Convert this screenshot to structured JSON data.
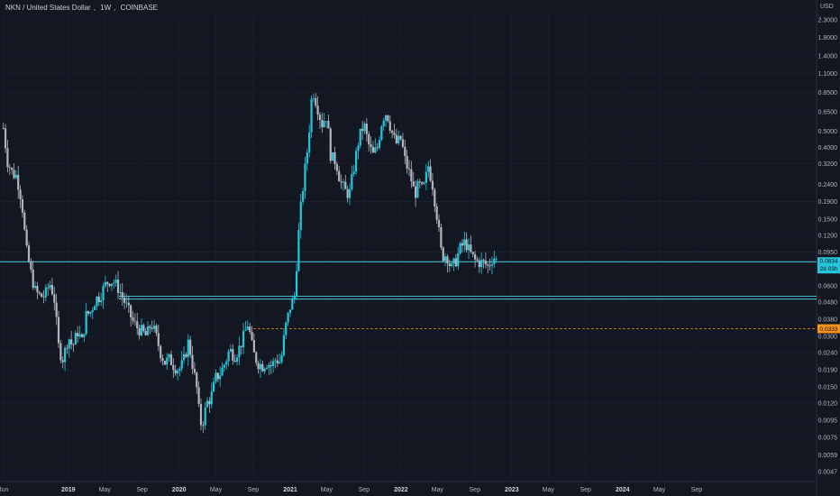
{
  "header": {
    "symbol": "NKN / United States Dollar",
    "interval": "1W",
    "exchange": "COINBASE",
    "currency": "USD"
  },
  "colors": {
    "background": "#131722",
    "up": "#26c6da",
    "down": "#b2b5be",
    "support_line": "#4dd0e1",
    "dashed_level": "#f7931a",
    "grid": "#1e2230",
    "axis_text": "#b2b5be"
  },
  "badges": {
    "current_price": "0.0834",
    "countdown": "2d 03h",
    "level_price": "0.0333"
  },
  "chart_data": {
    "type": "candlestick",
    "scale": "log",
    "ylim": [
      0.0042,
      2.6
    ],
    "xlim": [
      "2018-05-21",
      "2025-10-01"
    ],
    "grid": true,
    "y_tick_labels": [
      "2.3000",
      "1.8000",
      "1.4000",
      "1.1000",
      "0.8500",
      "0.6500",
      "0.5000",
      "0.4000",
      "0.3200",
      "0.2400",
      "0.1900",
      "0.1500",
      "0.1200",
      "0.0950",
      "0.0600",
      "0.0480",
      "0.0380",
      "0.0300",
      "0.0240",
      "0.0190",
      "0.0150",
      "0.0120",
      "0.0095",
      "0.0075",
      "0.0059",
      "0.0047"
    ],
    "x_tick_labels": [
      {
        "date": "2018-06-01",
        "label": "Jun",
        "year": false
      },
      {
        "date": "2019-01-01",
        "label": "2019",
        "year": true
      },
      {
        "date": "2019-05-01",
        "label": "May",
        "year": false
      },
      {
        "date": "2019-09-01",
        "label": "Sep",
        "year": false
      },
      {
        "date": "2020-01-01",
        "label": "2020",
        "year": true
      },
      {
        "date": "2020-05-01",
        "label": "May",
        "year": false
      },
      {
        "date": "2020-09-01",
        "label": "Sep",
        "year": false
      },
      {
        "date": "2021-01-01",
        "label": "2021",
        "year": true
      },
      {
        "date": "2021-05-01",
        "label": "May",
        "year": false
      },
      {
        "date": "2021-09-01",
        "label": "Sep",
        "year": false
      },
      {
        "date": "2022-01-01",
        "label": "2022",
        "year": true
      },
      {
        "date": "2022-05-01",
        "label": "May",
        "year": false
      },
      {
        "date": "2022-09-01",
        "label": "Sep",
        "year": false
      },
      {
        "date": "2023-01-01",
        "label": "2023",
        "year": true
      },
      {
        "date": "2023-05-01",
        "label": "May",
        "year": false
      },
      {
        "date": "2023-09-01",
        "label": "Sep",
        "year": false
      },
      {
        "date": "2024-01-01",
        "label": "2024",
        "year": true
      },
      {
        "date": "2024-05-01",
        "label": "May",
        "year": false
      },
      {
        "date": "2024-09-01",
        "label": "Sep",
        "year": false
      }
    ],
    "series": [
      {
        "name": "NKN/USD",
        "points": [
          [
            "2018-06-01",
            0.52
          ],
          [
            "2018-06-15",
            0.33
          ],
          [
            "2018-07-01",
            0.28
          ],
          [
            "2018-07-15",
            0.27
          ],
          [
            "2018-08-01",
            0.19
          ],
          [
            "2018-08-15",
            0.1
          ],
          [
            "2018-09-01",
            0.07
          ],
          [
            "2018-09-15",
            0.055
          ],
          [
            "2018-10-01",
            0.052
          ],
          [
            "2018-10-15",
            0.052
          ],
          [
            "2018-11-01",
            0.062
          ],
          [
            "2018-11-15",
            0.052
          ],
          [
            "2018-12-01",
            0.025
          ],
          [
            "2018-12-15",
            0.022
          ],
          [
            "2019-01-01",
            0.03
          ],
          [
            "2019-01-15",
            0.026
          ],
          [
            "2019-02-01",
            0.032
          ],
          [
            "2019-02-15",
            0.028
          ],
          [
            "2019-03-01",
            0.04
          ],
          [
            "2019-03-15",
            0.042
          ],
          [
            "2019-04-01",
            0.05
          ],
          [
            "2019-04-15",
            0.052
          ],
          [
            "2019-05-01",
            0.06
          ],
          [
            "2019-05-15",
            0.065
          ],
          [
            "2019-06-01",
            0.063
          ],
          [
            "2019-06-15",
            0.058
          ],
          [
            "2019-07-01",
            0.05
          ],
          [
            "2019-07-15",
            0.044
          ],
          [
            "2019-08-01",
            0.037
          ],
          [
            "2019-08-15",
            0.034
          ],
          [
            "2019-09-01",
            0.032
          ],
          [
            "2019-09-15",
            0.03
          ],
          [
            "2019-10-01",
            0.036
          ],
          [
            "2019-10-15",
            0.031
          ],
          [
            "2019-11-01",
            0.024
          ],
          [
            "2019-11-15",
            0.021
          ],
          [
            "2019-12-01",
            0.022
          ],
          [
            "2019-12-15",
            0.02
          ],
          [
            "2020-01-01",
            0.019
          ],
          [
            "2020-01-15",
            0.021
          ],
          [
            "2020-02-01",
            0.028
          ],
          [
            "2020-02-15",
            0.02
          ],
          [
            "2020-03-01",
            0.014
          ],
          [
            "2020-03-10",
            0.009
          ],
          [
            "2020-03-20",
            0.0095
          ],
          [
            "2020-04-01",
            0.012
          ],
          [
            "2020-04-15",
            0.013
          ],
          [
            "2020-05-01",
            0.017
          ],
          [
            "2020-05-15",
            0.018
          ],
          [
            "2020-06-01",
            0.021
          ],
          [
            "2020-06-15",
            0.025
          ],
          [
            "2020-07-01",
            0.023
          ],
          [
            "2020-07-15",
            0.025
          ],
          [
            "2020-08-01",
            0.03
          ],
          [
            "2020-08-15",
            0.036
          ],
          [
            "2020-09-01",
            0.024
          ],
          [
            "2020-09-15",
            0.021
          ],
          [
            "2020-10-01",
            0.02
          ],
          [
            "2020-10-15",
            0.021
          ],
          [
            "2020-11-01",
            0.02
          ],
          [
            "2020-11-15",
            0.022
          ],
          [
            "2020-12-01",
            0.021
          ],
          [
            "2020-12-15",
            0.033
          ],
          [
            "2021-01-01",
            0.045
          ],
          [
            "2021-01-15",
            0.052
          ],
          [
            "2021-02-01",
            0.15
          ],
          [
            "2021-02-15",
            0.26
          ],
          [
            "2021-03-01",
            0.42
          ],
          [
            "2021-03-15",
            0.9
          ],
          [
            "2021-04-01",
            0.7
          ],
          [
            "2021-04-15",
            0.55
          ],
          [
            "2021-05-01",
            0.62
          ],
          [
            "2021-05-15",
            0.35
          ],
          [
            "2021-06-01",
            0.33
          ],
          [
            "2021-06-15",
            0.25
          ],
          [
            "2021-07-01",
            0.22
          ],
          [
            "2021-07-15",
            0.21
          ],
          [
            "2021-08-01",
            0.32
          ],
          [
            "2021-08-15",
            0.45
          ],
          [
            "2021-09-01",
            0.55
          ],
          [
            "2021-09-15",
            0.42
          ],
          [
            "2021-10-01",
            0.36
          ],
          [
            "2021-10-15",
            0.4
          ],
          [
            "2021-11-01",
            0.6
          ],
          [
            "2021-11-15",
            0.65
          ],
          [
            "2021-12-01",
            0.5
          ],
          [
            "2021-12-15",
            0.42
          ],
          [
            "2022-01-01",
            0.45
          ],
          [
            "2022-01-15",
            0.33
          ],
          [
            "2022-02-01",
            0.27
          ],
          [
            "2022-02-15",
            0.21
          ],
          [
            "2022-03-01",
            0.24
          ],
          [
            "2022-03-15",
            0.22
          ],
          [
            "2022-04-01",
            0.31
          ],
          [
            "2022-04-15",
            0.24
          ],
          [
            "2022-05-01",
            0.15
          ],
          [
            "2022-05-15",
            0.09
          ],
          [
            "2022-06-01",
            0.092
          ],
          [
            "2022-06-15",
            0.075
          ],
          [
            "2022-07-01",
            0.085
          ],
          [
            "2022-07-15",
            0.1
          ],
          [
            "2022-08-01",
            0.11
          ],
          [
            "2022-08-15",
            0.095
          ],
          [
            "2022-09-01",
            0.085
          ],
          [
            "2022-09-15",
            0.083
          ],
          [
            "2022-10-01",
            0.082
          ],
          [
            "2022-10-15",
            0.078
          ],
          [
            "2022-11-01",
            0.09
          ],
          [
            "2022-11-15",
            0.0834
          ]
        ]
      }
    ],
    "horizontal_lines": [
      {
        "value": 0.0834,
        "style": "solid"
      },
      {
        "value": 0.052,
        "style": "solid"
      },
      {
        "value": 0.05,
        "style": "solid"
      },
      {
        "value": 0.0333,
        "style": "dashed",
        "from": "2020-09-01"
      }
    ]
  }
}
